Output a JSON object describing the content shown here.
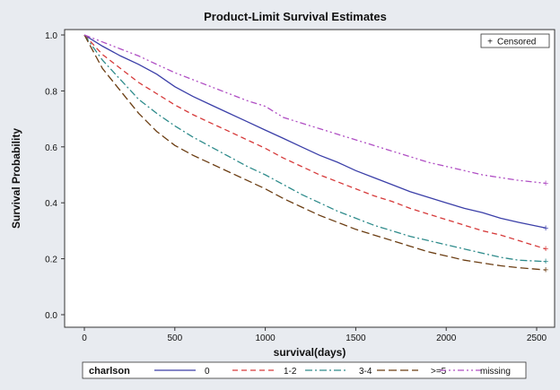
{
  "chart_data": {
    "type": "line",
    "title": "Product-Limit Survival Estimates",
    "xlabel": "survival(days)",
    "ylabel": "Survival Probability",
    "xlim": [
      0,
      2550
    ],
    "ylim": [
      0,
      1
    ],
    "x_ticks": [
      0,
      500,
      1000,
      1500,
      2000,
      2500
    ],
    "y_ticks": [
      0.0,
      0.2,
      0.4,
      0.6,
      0.8,
      1.0
    ],
    "x_tick_labels": [
      "0",
      "500",
      "1000",
      "1500",
      "2000",
      "2500"
    ],
    "y_tick_labels": [
      "0.0",
      "0.2",
      "0.4",
      "0.6",
      "0.8",
      "1.0"
    ],
    "grid": false,
    "censored_label": "Censored",
    "legend_title": "charlson",
    "legend_position": "bottom",
    "series": [
      {
        "name": "0",
        "color": "#3b3fa8",
        "dash": "solid",
        "points": [
          [
            0,
            1.0
          ],
          [
            100,
            0.96
          ],
          [
            200,
            0.925
          ],
          [
            300,
            0.895
          ],
          [
            400,
            0.86
          ],
          [
            500,
            0.815
          ],
          [
            600,
            0.78
          ],
          [
            700,
            0.75
          ],
          [
            800,
            0.72
          ],
          [
            900,
            0.69
          ],
          [
            1000,
            0.66
          ],
          [
            1100,
            0.63
          ],
          [
            1200,
            0.6
          ],
          [
            1300,
            0.57
          ],
          [
            1400,
            0.545
          ],
          [
            1500,
            0.515
          ],
          [
            1600,
            0.49
          ],
          [
            1700,
            0.465
          ],
          [
            1800,
            0.44
          ],
          [
            1900,
            0.42
          ],
          [
            2000,
            0.4
          ],
          [
            2100,
            0.38
          ],
          [
            2200,
            0.365
          ],
          [
            2300,
            0.345
          ],
          [
            2400,
            0.33
          ],
          [
            2550,
            0.31
          ]
        ]
      },
      {
        "name": "1-2",
        "color": "#d63a3a",
        "dash": "dashed",
        "points": [
          [
            0,
            1.0
          ],
          [
            100,
            0.93
          ],
          [
            200,
            0.88
          ],
          [
            300,
            0.83
          ],
          [
            400,
            0.79
          ],
          [
            500,
            0.75
          ],
          [
            600,
            0.715
          ],
          [
            700,
            0.685
          ],
          [
            800,
            0.655
          ],
          [
            900,
            0.625
          ],
          [
            1000,
            0.595
          ],
          [
            1100,
            0.56
          ],
          [
            1200,
            0.53
          ],
          [
            1300,
            0.5
          ],
          [
            1400,
            0.475
          ],
          [
            1500,
            0.45
          ],
          [
            1600,
            0.425
          ],
          [
            1700,
            0.405
          ],
          [
            1800,
            0.38
          ],
          [
            1900,
            0.36
          ],
          [
            2000,
            0.34
          ],
          [
            2100,
            0.32
          ],
          [
            2200,
            0.3
          ],
          [
            2300,
            0.285
          ],
          [
            2400,
            0.265
          ],
          [
            2550,
            0.235
          ]
        ]
      },
      {
        "name": "3-4",
        "color": "#2e8b8b",
        "dash": "dashdot",
        "points": [
          [
            0,
            1.0
          ],
          [
            100,
            0.91
          ],
          [
            200,
            0.84
          ],
          [
            300,
            0.77
          ],
          [
            400,
            0.72
          ],
          [
            500,
            0.675
          ],
          [
            600,
            0.635
          ],
          [
            700,
            0.6
          ],
          [
            800,
            0.565
          ],
          [
            900,
            0.53
          ],
          [
            1000,
            0.5
          ],
          [
            1100,
            0.465
          ],
          [
            1200,
            0.43
          ],
          [
            1300,
            0.4
          ],
          [
            1400,
            0.37
          ],
          [
            1500,
            0.345
          ],
          [
            1600,
            0.32
          ],
          [
            1700,
            0.3
          ],
          [
            1800,
            0.28
          ],
          [
            1900,
            0.265
          ],
          [
            2000,
            0.25
          ],
          [
            2100,
            0.235
          ],
          [
            2200,
            0.22
          ],
          [
            2300,
            0.205
          ],
          [
            2400,
            0.195
          ],
          [
            2550,
            0.19
          ]
        ]
      },
      {
        "name": ">=5",
        "color": "#6b3d12",
        "dash": "longdash",
        "points": [
          [
            0,
            1.0
          ],
          [
            100,
            0.88
          ],
          [
            200,
            0.8
          ],
          [
            300,
            0.72
          ],
          [
            400,
            0.655
          ],
          [
            500,
            0.605
          ],
          [
            600,
            0.57
          ],
          [
            700,
            0.54
          ],
          [
            800,
            0.51
          ],
          [
            900,
            0.48
          ],
          [
            1000,
            0.45
          ],
          [
            1100,
            0.415
          ],
          [
            1200,
            0.385
          ],
          [
            1300,
            0.355
          ],
          [
            1400,
            0.33
          ],
          [
            1500,
            0.305
          ],
          [
            1600,
            0.285
          ],
          [
            1700,
            0.265
          ],
          [
            1800,
            0.245
          ],
          [
            1900,
            0.225
          ],
          [
            2000,
            0.21
          ],
          [
            2100,
            0.195
          ],
          [
            2200,
            0.185
          ],
          [
            2300,
            0.175
          ],
          [
            2400,
            0.168
          ],
          [
            2550,
            0.16
          ]
        ]
      },
      {
        "name": "missing",
        "color": "#b04fc4",
        "dash": "dashdotdot",
        "points": [
          [
            0,
            1.0
          ],
          [
            100,
            0.975
          ],
          [
            200,
            0.95
          ],
          [
            300,
            0.925
          ],
          [
            400,
            0.895
          ],
          [
            500,
            0.865
          ],
          [
            600,
            0.84
          ],
          [
            700,
            0.815
          ],
          [
            800,
            0.79
          ],
          [
            900,
            0.765
          ],
          [
            1000,
            0.745
          ],
          [
            1100,
            0.705
          ],
          [
            1200,
            0.685
          ],
          [
            1300,
            0.665
          ],
          [
            1400,
            0.645
          ],
          [
            1500,
            0.625
          ],
          [
            1600,
            0.605
          ],
          [
            1700,
            0.585
          ],
          [
            1800,
            0.565
          ],
          [
            1900,
            0.545
          ],
          [
            2000,
            0.53
          ],
          [
            2100,
            0.515
          ],
          [
            2200,
            0.5
          ],
          [
            2300,
            0.49
          ],
          [
            2400,
            0.48
          ],
          [
            2550,
            0.47
          ]
        ]
      }
    ]
  }
}
